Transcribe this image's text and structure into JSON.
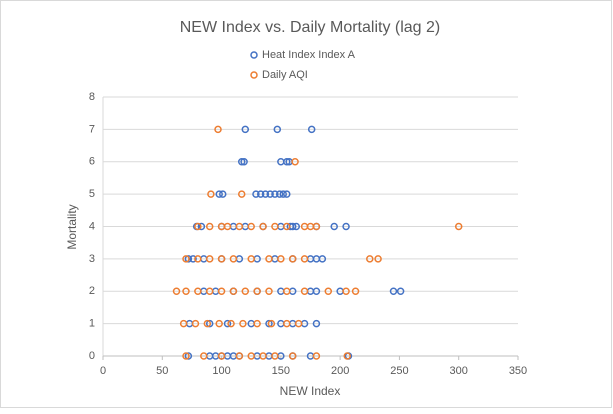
{
  "chart_data": {
    "type": "scatter",
    "title": "NEW Index vs. Daily Mortality (lag 2)",
    "x_label": "NEW Index",
    "y_label": "Mortality",
    "xlim": [
      0,
      350
    ],
    "xticks": [
      0,
      50,
      100,
      150,
      200,
      250,
      300,
      350
    ],
    "ylim": [
      0,
      8
    ],
    "yticks": [
      0,
      1,
      2,
      3,
      4,
      5,
      6,
      7,
      8
    ],
    "grid": true,
    "legend": "top",
    "series": [
      {
        "name": "Heat Index Index A",
        "color": "#4472c4",
        "x": [
          120,
          147,
          176,
          117,
          119,
          150,
          155,
          157,
          98,
          101,
          129,
          133,
          137,
          141,
          145,
          149,
          152,
          155,
          79,
          83,
          100,
          110,
          120,
          135,
          150,
          158,
          160,
          163,
          180,
          195,
          205,
          72,
          76,
          85,
          100,
          115,
          130,
          145,
          160,
          175,
          180,
          185,
          85,
          95,
          110,
          130,
          150,
          160,
          175,
          180,
          200,
          245,
          251,
          73,
          90,
          105,
          125,
          140,
          150,
          160,
          170,
          180,
          72,
          90,
          95,
          100,
          105,
          110,
          115,
          130,
          140,
          150,
          160,
          175,
          207
        ],
        "values": [
          7,
          7,
          7,
          6,
          6,
          6,
          6,
          6,
          5,
          5,
          5,
          5,
          5,
          5,
          5,
          5,
          5,
          5,
          4,
          4,
          4,
          4,
          4,
          4,
          4,
          4,
          4,
          4,
          4,
          4,
          4,
          3,
          3,
          3,
          3,
          3,
          3,
          3,
          3,
          3,
          3,
          3,
          2,
          2,
          2,
          2,
          2,
          2,
          2,
          2,
          2,
          2,
          2,
          1,
          1,
          1,
          1,
          1,
          1,
          1,
          1,
          1,
          0,
          0,
          0,
          0,
          0,
          0,
          0,
          0,
          0,
          0,
          0,
          0,
          0
        ]
      },
      {
        "name": "Daily AQI",
        "color": "#ed7d31",
        "x": [
          97,
          162,
          91,
          117,
          80,
          90,
          100,
          105,
          115,
          125,
          135,
          145,
          155,
          170,
          175,
          180,
          300,
          70,
          80,
          90,
          100,
          110,
          125,
          140,
          150,
          160,
          170,
          225,
          232,
          62,
          70,
          80,
          90,
          100,
          110,
          120,
          130,
          140,
          155,
          170,
          190,
          205,
          213,
          68,
          78,
          88,
          98,
          108,
          118,
          130,
          142,
          155,
          165,
          70,
          85,
          100,
          115,
          125,
          135,
          145,
          160,
          180,
          206
        ],
        "values": [
          7,
          6,
          5,
          5,
          4,
          4,
          4,
          4,
          4,
          4,
          4,
          4,
          4,
          4,
          4,
          4,
          4,
          3,
          3,
          3,
          3,
          3,
          3,
          3,
          3,
          3,
          3,
          3,
          3,
          2,
          2,
          2,
          2,
          2,
          2,
          2,
          2,
          2,
          2,
          2,
          2,
          2,
          2,
          1,
          1,
          1,
          1,
          1,
          1,
          1,
          1,
          1,
          1,
          0,
          0,
          0,
          0,
          0,
          0,
          0,
          0,
          0,
          0
        ]
      }
    ]
  }
}
